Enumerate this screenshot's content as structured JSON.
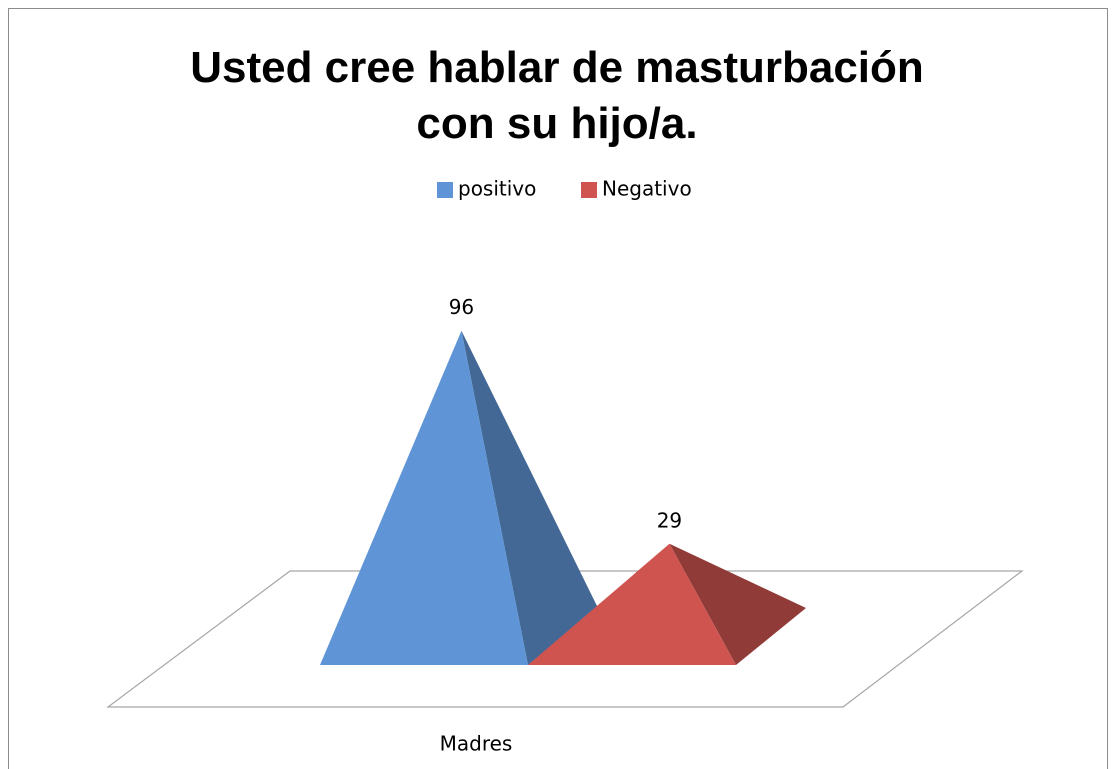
{
  "chart_data": {
    "type": "pyramid",
    "title": "Usted cree hablar de masturbación con su hijo/a.",
    "categories": [
      "Madres"
    ],
    "series": [
      {
        "name": "positivo",
        "color": "#5f95d6",
        "values": [
          96
        ]
      },
      {
        "name": "Negativo",
        "color": "#cf5450",
        "values": [
          29
        ]
      }
    ]
  }
}
